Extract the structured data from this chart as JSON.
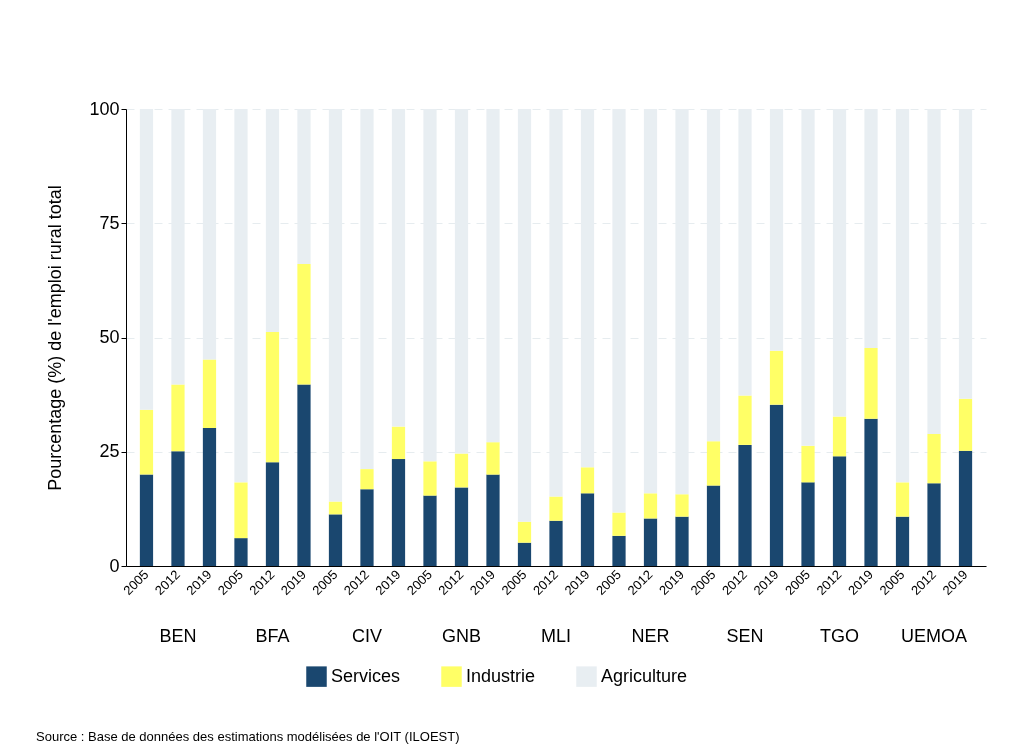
{
  "chart_data": {
    "type": "bar",
    "stacked": true,
    "ylabel": "Pourcentage (%) de l'emploi rural total",
    "categories": [
      "2005",
      "2012",
      "2019",
      "2005",
      "2012",
      "2019",
      "2005",
      "2012",
      "2019",
      "2005",
      "2012",
      "2019",
      "2005",
      "2012",
      "2019",
      "2005",
      "2012",
      "2019",
      "2005",
      "2012",
      "2019",
      "2005",
      "2012",
      "2019",
      "2005",
      "2012",
      "2019"
    ],
    "series": [
      {
        "name": "Services",
        "color": "#1a476f",
        "values": [
          20.0,
          25.1,
          30.2,
          6.1,
          22.7,
          39.7,
          11.3,
          16.8,
          23.4,
          15.4,
          17.2,
          20.0,
          5.1,
          9.9,
          15.9,
          6.6,
          10.4,
          10.8,
          17.6,
          26.5,
          35.3,
          18.3,
          24.0,
          32.2,
          10.8,
          18.1,
          25.2
        ]
      },
      {
        "name": "Industrie",
        "color": "#ffff66",
        "values": [
          14.2,
          14.6,
          15.0,
          12.2,
          28.5,
          26.4,
          2.8,
          4.4,
          7.1,
          7.5,
          7.4,
          7.1,
          4.6,
          5.3,
          5.7,
          5.1,
          5.5,
          4.9,
          9.7,
          10.8,
          11.8,
          8.0,
          8.7,
          15.5,
          7.5,
          10.8,
          11.4
        ]
      },
      {
        "name": "Agriculture",
        "color": "#e8eef2",
        "values": [
          65.8,
          60.3,
          54.8,
          81.7,
          48.8,
          33.9,
          85.9,
          78.8,
          69.5,
          77.1,
          75.4,
          72.9,
          90.3,
          84.8,
          78.4,
          88.3,
          84.1,
          84.3,
          72.7,
          62.7,
          52.9,
          73.7,
          67.3,
          52.3,
          81.7,
          71.1,
          63.4
        ]
      }
    ],
    "ylim": [
      0,
      100
    ],
    "yticks": [
      0,
      25,
      50,
      75,
      100
    ],
    "grid": "y",
    "legend": "bottom",
    "annotations": [
      "BEN",
      "BFA",
      "CIV",
      "GNB",
      "MLI",
      "NER",
      "SEN",
      "TGO",
      "UEMOA",
      "Source : Base de données des estimations modélisées de l'OIT (ILOEST)"
    ]
  }
}
